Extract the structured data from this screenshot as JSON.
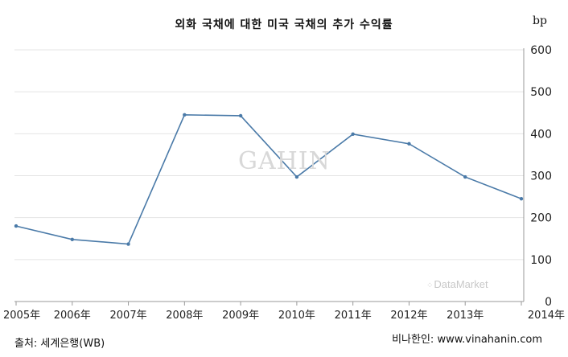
{
  "chart_data": {
    "type": "line",
    "title": "외화 국채에 대한 미국 국채의 추가 수익률",
    "unit_label": "bp",
    "categories": [
      "2005年",
      "2006年",
      "2007年",
      "2008年",
      "2009年",
      "2010年",
      "2011年",
      "2012年",
      "2013年",
      "2014年"
    ],
    "series": [
      {
        "values": [
          180,
          148,
          137,
          445,
          443,
          297,
          399,
          376,
          297,
          245
        ]
      }
    ],
    "ylim": [
      0,
      600
    ],
    "y_ticks": [
      "0",
      "100",
      "200",
      "300",
      "400",
      "500",
      "600"
    ],
    "y_axis_position": "right",
    "grid": true,
    "line_color": "#4a7aa8"
  },
  "watermark": "GAHIN",
  "datamarket_logo": "DataMarket",
  "source_left": "출처: 세계은행(WB)",
  "source_right": "비나한인: www.vinahanin.com"
}
